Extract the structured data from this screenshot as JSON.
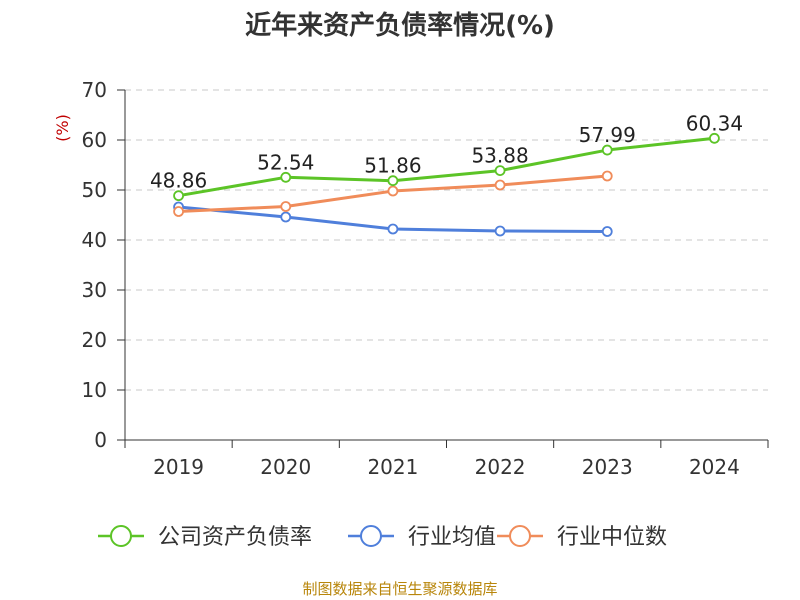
{
  "chart_data": {
    "type": "line",
    "title": "近年来资产负债率情况(%)",
    "ylabel": "(%)",
    "xlabel": "",
    "ylim": [
      0,
      70
    ],
    "yticks": [
      0,
      10,
      20,
      30,
      40,
      50,
      60,
      70
    ],
    "categories": [
      "2019",
      "2020",
      "2021",
      "2022",
      "2023",
      "2024"
    ],
    "grid": true,
    "legend_position": "bottom",
    "series": [
      {
        "name": "公司资产负债率",
        "color": "#5cc427",
        "values": [
          48.86,
          52.54,
          51.86,
          53.88,
          57.99,
          60.34
        ],
        "labels": [
          "48.86",
          "52.54",
          "51.86",
          "53.88",
          "57.99",
          "60.34"
        ]
      },
      {
        "name": "行业均值",
        "color": "#4f7fdb",
        "values": [
          46.6,
          44.6,
          42.2,
          41.8,
          41.7,
          null
        ]
      },
      {
        "name": "行业中位数",
        "color": "#f08c5a",
        "values": [
          45.7,
          46.7,
          49.8,
          51.0,
          52.8,
          null
        ]
      }
    ]
  },
  "source": "制图数据来自恒生聚源数据库"
}
